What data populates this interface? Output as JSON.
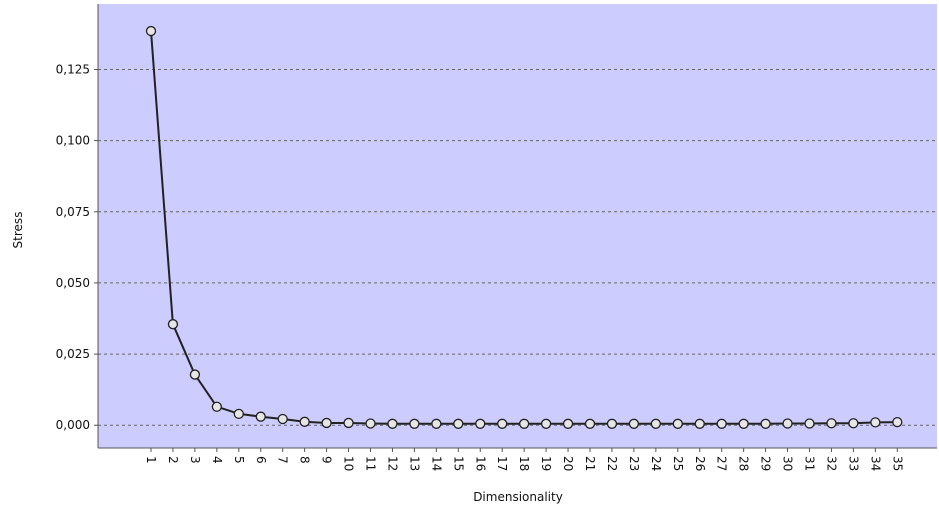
{
  "chart_data": {
    "type": "line",
    "title": "",
    "xlabel": "Dimensionality",
    "ylabel": "Stress",
    "x": [
      "1",
      "2",
      "3",
      "4",
      "5",
      "6",
      "7",
      "8",
      "9",
      "10",
      "11",
      "12",
      "13",
      "14",
      "15",
      "16",
      "17",
      "18",
      "19",
      "20",
      "21",
      "22",
      "23",
      "24",
      "25",
      "26",
      "27",
      "28",
      "29",
      "30",
      "31",
      "32",
      "33",
      "34",
      "35"
    ],
    "y_ticks": [
      "0,000",
      "0,025",
      "0,050",
      "0,075",
      "0,100",
      "0,125"
    ],
    "ylim": [
      -0.008,
      0.148
    ],
    "series": [
      {
        "values": [
          0.1385,
          0.0355,
          0.0178,
          0.0065,
          0.004,
          0.003,
          0.0022,
          0.0012,
          0.0008,
          0.0008,
          0.0006,
          0.0005,
          0.0005,
          0.0005,
          0.0005,
          0.0005,
          0.0005,
          0.0005,
          0.0005,
          0.0005,
          0.0005,
          0.0005,
          0.0005,
          0.0005,
          0.0005,
          0.0005,
          0.0005,
          0.0005,
          0.0005,
          0.0006,
          0.0006,
          0.0007,
          0.0007,
          0.001,
          0.0011
        ]
      }
    ],
    "grid": "horizontal dashed",
    "colors": {
      "plot_background": "#ccccff",
      "gridline": "#666666",
      "line": "#222222",
      "marker_fill": "#e6e6e6",
      "marker_stroke": "#222222"
    }
  }
}
